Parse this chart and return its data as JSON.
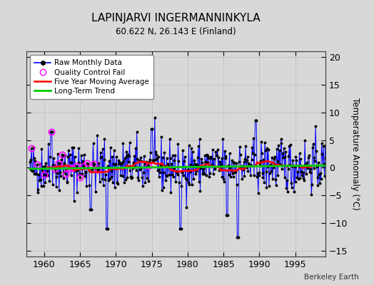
{
  "title": "LAPINJARVI INGERMANNINKYLA",
  "subtitle": "60.622 N, 26.143 E (Finland)",
  "ylabel_right": "Temperature Anomaly (°C)",
  "credit": "Berkeley Earth",
  "xlim": [
    1957.5,
    1999.2
  ],
  "ylim": [
    -16,
    21
  ],
  "yticks": [
    -15,
    -10,
    -5,
    0,
    5,
    10,
    15,
    20
  ],
  "xticks": [
    1960,
    1965,
    1970,
    1975,
    1980,
    1985,
    1990,
    1995
  ],
  "line_color": "#0000ff",
  "marker_color": "#000000",
  "qc_color": "#ff00ff",
  "moving_avg_color": "#ff0000",
  "trend_color": "#00cc00",
  "bg_color": "#d8d8d8",
  "plot_bg_color": "#d8d8d8",
  "seed": 42
}
